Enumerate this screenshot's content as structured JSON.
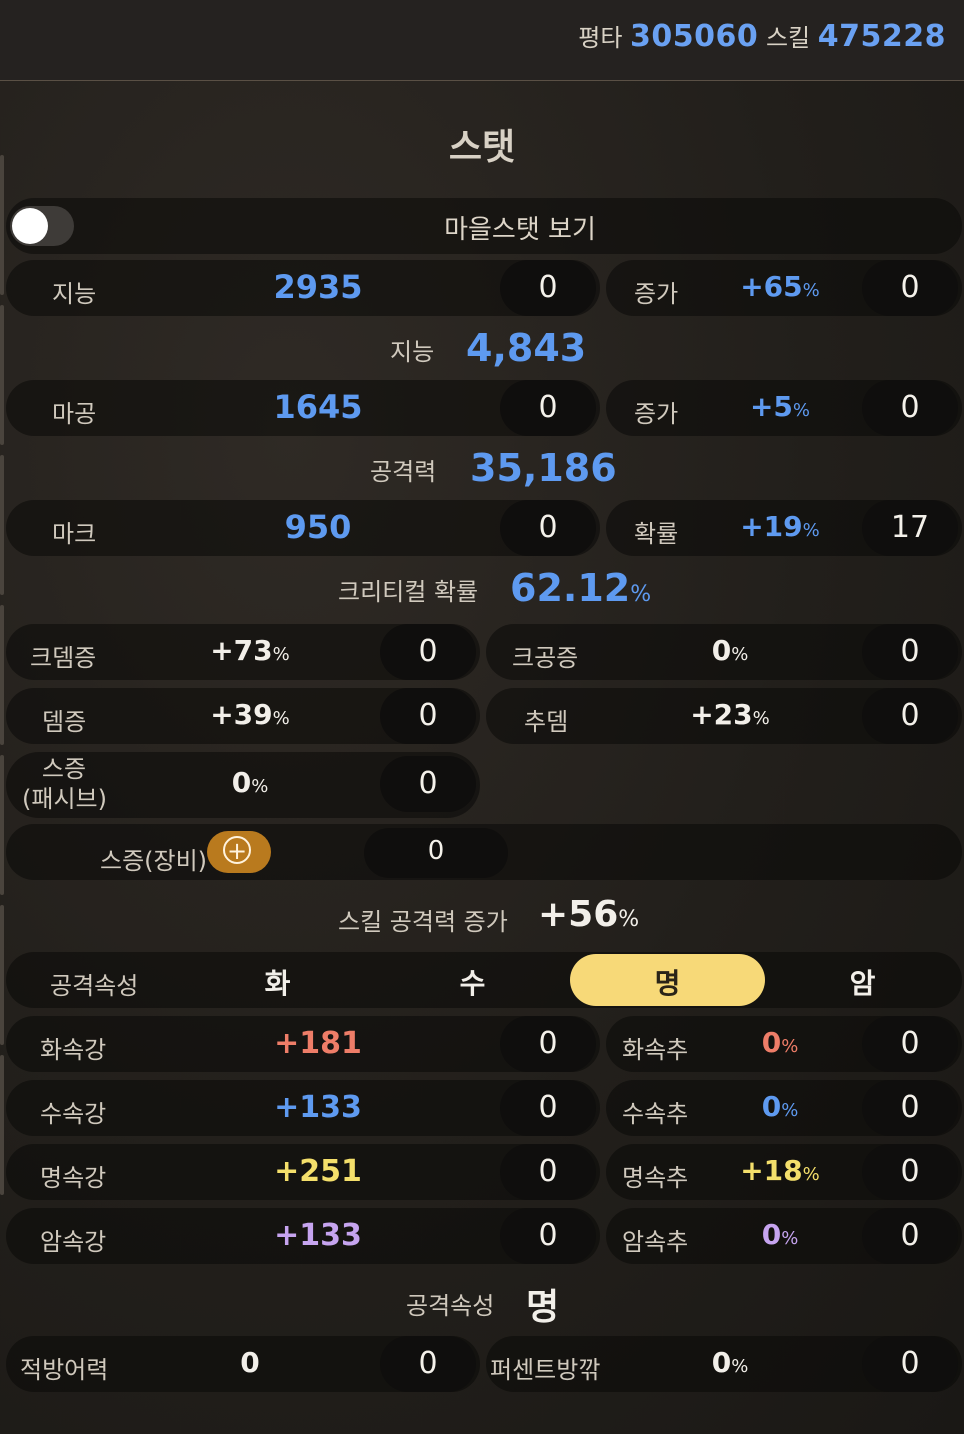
{
  "header": {
    "normal_label": "평타",
    "normal_value": "305060",
    "skill_label": "스킬",
    "skill_value": "475228"
  },
  "title": "스탯",
  "toggle": {
    "label": "마을스탯 보기",
    "on": false
  },
  "int_row": {
    "label": "지능",
    "value": "2935",
    "input": "0",
    "inc_label": "증가",
    "inc_value": "+65",
    "inc_unit": "%",
    "inc_input": "0"
  },
  "int_total": {
    "label": "지능",
    "value": "4,843"
  },
  "mag_row": {
    "label": "마공",
    "value": "1645",
    "input": "0",
    "inc_label": "증가",
    "inc_value": "+5",
    "inc_unit": "%",
    "inc_input": "0"
  },
  "atk_total": {
    "label": "공격력",
    "value": "35,186"
  },
  "mark_row": {
    "label": "마크",
    "value": "950",
    "input": "0",
    "rate_label": "확률",
    "rate_value": "+19",
    "rate_unit": "%",
    "rate_input": "17"
  },
  "crit_total": {
    "label": "크리티컬 확률",
    "value": "62.12",
    "unit": "%"
  },
  "crit_dmg": {
    "label": "크뎀증",
    "value": "+73",
    "unit": "%",
    "input": "0"
  },
  "crit_atk": {
    "label": "크공증",
    "value": "0",
    "unit": "%",
    "input": "0"
  },
  "dmg_inc": {
    "label": "뎀증",
    "value": "+39",
    "unit": "%",
    "input": "0"
  },
  "add_dmg": {
    "label": "추뎀",
    "value": "+23",
    "unit": "%",
    "input": "0"
  },
  "skill_passive": {
    "label_line1": "스증",
    "label_line2": "(패시브)",
    "value": "0",
    "unit": "%",
    "input": "0"
  },
  "skill_equip": {
    "label": "스증(장비)",
    "input": "0"
  },
  "skill_total": {
    "label": "스킬 공격력 증가",
    "value": "+56",
    "unit": "%"
  },
  "attr_select": {
    "label": "공격속성",
    "options": [
      "화",
      "수",
      "명",
      "암"
    ],
    "selected": "명"
  },
  "fire_row": {
    "label": "화속강",
    "value": "+181",
    "input": "0",
    "add_label": "화속추",
    "add_value": "0",
    "add_unit": "%",
    "add_input": "0"
  },
  "water_row": {
    "label": "수속강",
    "value": "+133",
    "input": "0",
    "add_label": "수속추",
    "add_value": "0",
    "add_unit": "%",
    "add_input": "0"
  },
  "light_row": {
    "label": "명속강",
    "value": "+251",
    "input": "0",
    "add_label": "명속추",
    "add_value": "+18",
    "add_unit": "%",
    "add_input": "0"
  },
  "dark_row": {
    "label": "암속강",
    "value": "+133",
    "input": "0",
    "add_label": "암속추",
    "add_value": "0",
    "add_unit": "%",
    "add_input": "0"
  },
  "attr_result": {
    "label": "공격속성",
    "value": "명"
  },
  "def_row": {
    "label": "적방어력",
    "value": "0",
    "input": "0",
    "pct_label": "퍼센트방깎",
    "pct_value": "0",
    "pct_unit": "%",
    "pct_input": "0"
  },
  "colors": {
    "blue": "#5e9af0",
    "red": "#ee7d68",
    "yellow": "#f4df6b",
    "purple": "#c6a4ef",
    "selected": "#f7d978",
    "button": "#b97a1e"
  }
}
